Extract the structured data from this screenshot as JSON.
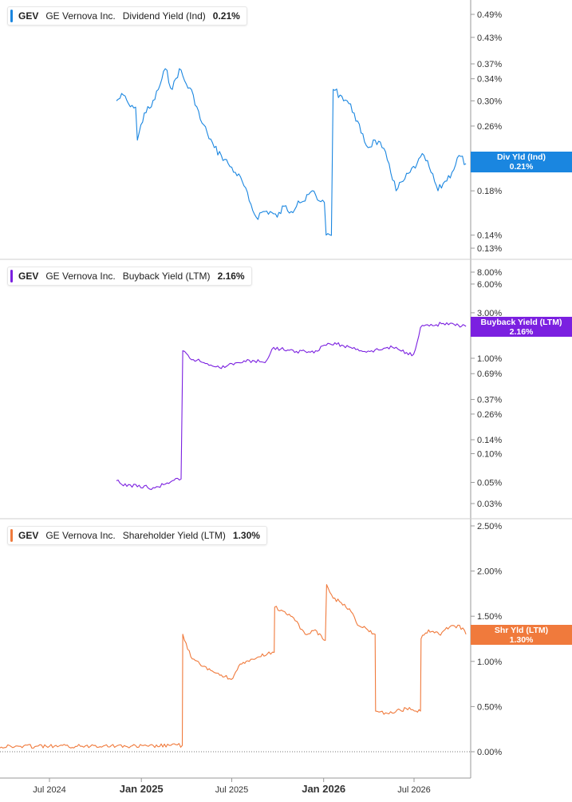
{
  "colors": {
    "dividend": "#1a86e0",
    "buyback": "#7b20e0",
    "shareholder": "#f07a3c",
    "grid": "#cfcfcf"
  },
  "panels": [
    {
      "ticker": "GEV",
      "company": "GE Vernova Inc.",
      "metric": "Dividend Yield (Ind)",
      "value": "0.21%",
      "tag_line1": "Div Yld (Ind)",
      "tag_line2": "0.21%"
    },
    {
      "ticker": "GEV",
      "company": "GE Vernova Inc.",
      "metric": "Buyback Yield (LTM)",
      "value": "2.16%",
      "tag_line1": "Buyback Yield (LTM)",
      "tag_line2": "2.16%"
    },
    {
      "ticker": "GEV",
      "company": "GE Vernova Inc.",
      "metric": "Shareholder Yield (LTM)",
      "value": "1.30%",
      "tag_line1": "Shr Yld (LTM)",
      "tag_line2": "1.30%"
    }
  ],
  "chart_data": [
    {
      "type": "line",
      "series": [
        {
          "name": "Dividend Yield (Ind)",
          "x": [
            "2024-11-12",
            "2024-11-26",
            "2024-12-10",
            "2024-12-24",
            "2025-01-07",
            "2025-01-21",
            "2025-02-04",
            "2025-02-18",
            "2025-03-04",
            "2025-03-18",
            "2025-04-01",
            "2025-04-15",
            "2025-04-29",
            "2025-05-13",
            "2025-05-27",
            "2025-06-10",
            "2025-06-24",
            "2025-07-08",
            "2025-07-22",
            "2025-08-05",
            "2025-08-19",
            "2025-09-02",
            "2025-09-16",
            "2025-09-30",
            "2025-10-14",
            "2025-10-28",
            "2025-11-11",
            "2025-11-25",
            "2025-12-09",
            "2025-12-23",
            "2026-01-06",
            "2026-01-20",
            "2026-02-03",
            "2026-02-17",
            "2026-03-03",
            "2026-03-17",
            "2026-03-31",
            "2026-04-14",
            "2026-04-28",
            "2026-05-12",
            "2026-05-26",
            "2026-06-09",
            "2026-06-23",
            "2026-07-07",
            "2026-07-21",
            "2026-08-04",
            "2026-08-18",
            "2026-09-01",
            "2026-09-15",
            "2026-09-29",
            "2026-10-13"
          ],
          "y": [
            0.3,
            0.31,
            0.29,
            0.24,
            0.28,
            0.29,
            0.32,
            0.36,
            0.32,
            0.36,
            0.33,
            0.31,
            0.27,
            0.25,
            0.23,
            0.22,
            0.21,
            0.2,
            0.19,
            0.17,
            0.155,
            0.16,
            0.16,
            0.155,
            0.165,
            0.16,
            0.17,
            0.17,
            0.18,
            0.17,
            0.14,
            0.32,
            0.31,
            0.3,
            0.28,
            0.25,
            0.23,
            0.24,
            0.23,
            0.21,
            0.18,
            0.19,
            0.2,
            0.21,
            0.22,
            0.2,
            0.18,
            0.19,
            0.2,
            0.22,
            0.21
          ]
        }
      ],
      "yscale": "log",
      "ytick_labels": [
        "0.49%",
        "0.43%",
        "0.37%",
        "0.34%",
        "0.30%",
        "0.26%",
        "0.18%",
        "0.14%",
        "0.13%"
      ],
      "ytick_values": [
        0.49,
        0.43,
        0.37,
        0.34,
        0.3,
        0.26,
        0.18,
        0.14,
        0.13
      ],
      "ylim": [
        0.12,
        0.52
      ],
      "last_value": 0.21
    },
    {
      "type": "line",
      "series": [
        {
          "name": "Buyback Yield (LTM)",
          "x": [
            "2024-11-12",
            "2024-11-26",
            "2024-12-10",
            "2024-12-24",
            "2025-01-07",
            "2025-01-21",
            "2025-02-04",
            "2025-02-18",
            "2025-03-04",
            "2025-03-18",
            "2025-03-25",
            "2025-04-08",
            "2025-04-22",
            "2025-05-06",
            "2025-05-20",
            "2025-06-03",
            "2025-06-17",
            "2025-07-01",
            "2025-07-15",
            "2025-07-29",
            "2025-08-12",
            "2025-08-26",
            "2025-09-09",
            "2025-09-23",
            "2025-10-07",
            "2025-10-21",
            "2025-11-04",
            "2025-11-18",
            "2025-12-02",
            "2025-12-16",
            "2025-12-30",
            "2026-01-13",
            "2026-01-27",
            "2026-02-10",
            "2026-02-24",
            "2026-03-10",
            "2026-03-24",
            "2026-04-07",
            "2026-04-21",
            "2026-05-05",
            "2026-05-19",
            "2026-06-02",
            "2026-06-16",
            "2026-06-30",
            "2026-07-14",
            "2026-07-28",
            "2026-08-11",
            "2026-08-25",
            "2026-09-08",
            "2026-09-22",
            "2026-10-13"
          ],
          "y": [
            0.052,
            0.046,
            0.047,
            0.045,
            0.046,
            0.042,
            0.045,
            0.048,
            0.052,
            0.053,
            1.2,
            1.0,
            0.95,
            0.9,
            0.85,
            0.83,
            0.8,
            0.88,
            0.9,
            0.92,
            0.95,
            0.92,
            0.95,
            1.3,
            1.25,
            1.22,
            1.15,
            1.2,
            1.17,
            1.2,
            1.35,
            1.42,
            1.4,
            1.35,
            1.3,
            1.25,
            1.18,
            1.2,
            1.22,
            1.28,
            1.3,
            1.22,
            1.15,
            1.1,
            2.1,
            2.25,
            2.2,
            2.3,
            2.25,
            2.2,
            2.16
          ]
        }
      ],
      "yscale": "log",
      "ytick_labels": [
        "8.00%",
        "6.00%",
        "3.00%",
        "1.00%",
        "0.69%",
        "0.37%",
        "0.26%",
        "0.14%",
        "0.10%",
        "0.05%",
        "0.03%"
      ],
      "ytick_values": [
        8.0,
        6.0,
        3.0,
        1.0,
        0.69,
        0.37,
        0.26,
        0.14,
        0.1,
        0.05,
        0.03
      ],
      "ylim": [
        0.025,
        9.5
      ],
      "last_value": 2.16
    },
    {
      "type": "line",
      "series": [
        {
          "name": "Shareholder Yield (LTM)",
          "x": [
            "2023-11-20",
            "2024-01-09",
            "2024-01-16",
            "2024-03-01",
            "2024-05-01",
            "2024-07-01",
            "2024-09-01",
            "2024-10-01",
            "2024-10-20",
            "2024-12-01",
            "2025-01-15",
            "2025-03-01",
            "2025-03-24",
            "2025-03-25",
            "2025-04-10",
            "2025-05-01",
            "2025-05-20",
            "2025-06-10",
            "2025-06-30",
            "2025-07-15",
            "2025-08-05",
            "2025-08-25",
            "2025-09-10",
            "2025-09-24",
            "2025-09-25",
            "2025-10-15",
            "2025-11-05",
            "2025-11-25",
            "2025-12-15",
            "2025-12-30",
            "2026-01-07",
            "2026-01-20",
            "2026-02-05",
            "2026-02-25",
            "2026-03-10",
            "2026-03-30",
            "2026-04-14",
            "2026-04-15",
            "2026-05-05",
            "2026-05-25",
            "2026-06-15",
            "2026-07-05",
            "2026-07-14",
            "2026-07-15",
            "2026-07-30",
            "2026-08-20",
            "2026-09-10",
            "2026-09-30",
            "2026-10-13"
          ],
          "y": [
            -0.03,
            -0.03,
            0.05,
            0.05,
            0.06,
            0.06,
            0.06,
            0.07,
            0.07,
            0.06,
            0.06,
            0.07,
            0.07,
            1.3,
            1.05,
            0.95,
            0.9,
            0.85,
            0.8,
            0.95,
            1.0,
            1.05,
            1.08,
            1.1,
            1.6,
            1.55,
            1.45,
            1.3,
            1.35,
            1.25,
            1.85,
            1.7,
            1.65,
            1.55,
            1.4,
            1.35,
            1.3,
            0.45,
            0.43,
            0.44,
            0.48,
            0.45,
            0.45,
            1.25,
            1.35,
            1.3,
            1.38,
            1.4,
            1.3
          ]
        }
      ],
      "yscale": "linear",
      "ytick_labels": [
        "2.50%",
        "2.00%",
        "1.50%",
        "1.00%",
        "0.50%",
        "0.00%"
      ],
      "ytick_values": [
        2.5,
        2.0,
        1.5,
        1.0,
        0.5,
        0.0
      ],
      "ylim": [
        -0.2,
        2.6
      ],
      "last_value": 1.3
    }
  ],
  "x_axis": {
    "ticks": [
      {
        "label": "Jul 2024",
        "date": "2024-07-01",
        "major": false
      },
      {
        "label": "Jan 2025",
        "date": "2025-01-01",
        "major": true
      },
      {
        "label": "Jul 2025",
        "date": "2025-07-01",
        "major": false
      },
      {
        "label": "Jan 2026",
        "date": "2026-01-01",
        "major": true
      },
      {
        "label": "Jul 2026",
        "date": "2026-07-01",
        "major": false
      }
    ]
  }
}
